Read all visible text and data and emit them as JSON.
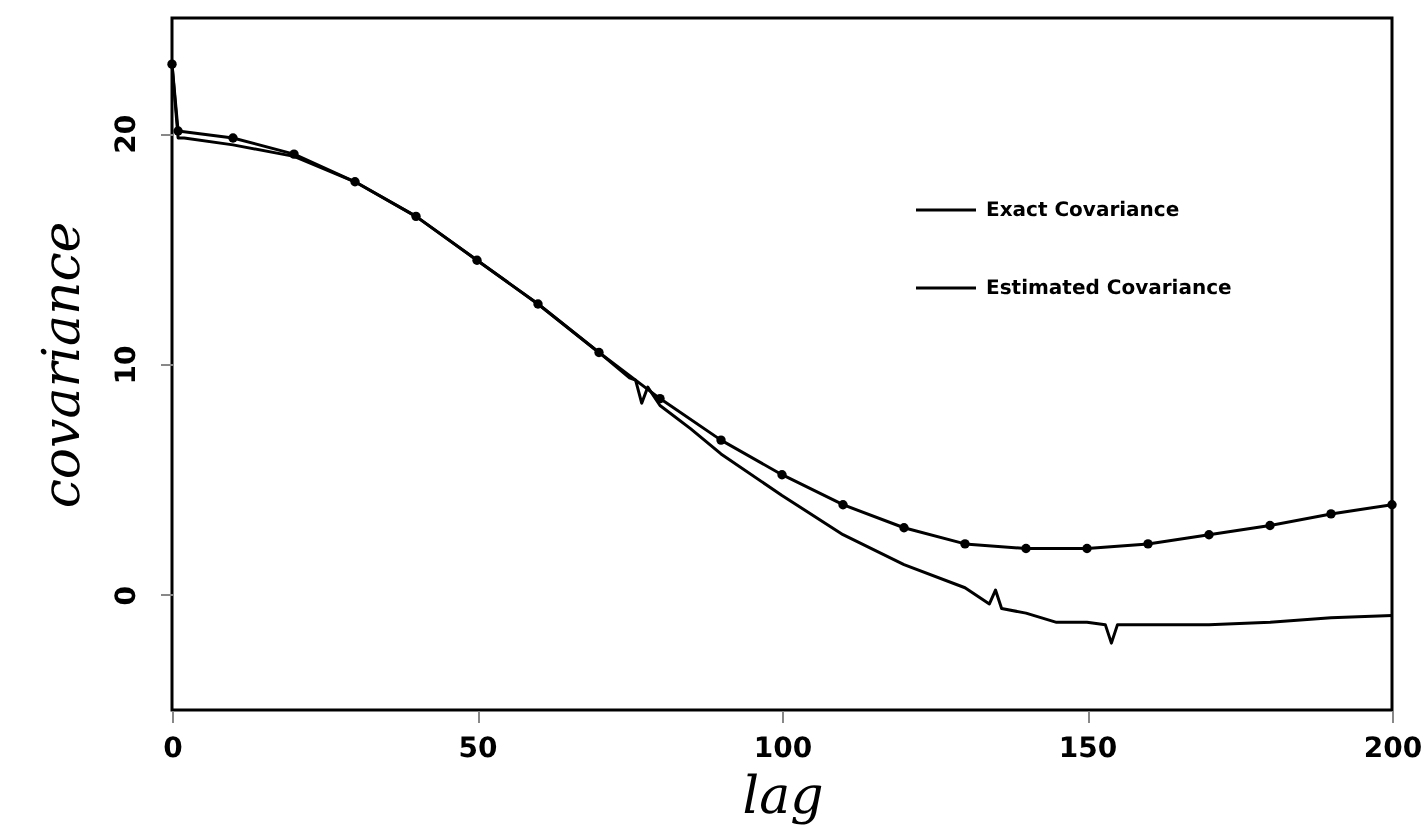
{
  "chart_data": {
    "type": "line",
    "xlabel": "lag",
    "ylabel": "covariance",
    "xlim": [
      0,
      200
    ],
    "xticks": [
      0,
      50,
      100,
      150,
      200
    ],
    "ylim": [
      -5,
      25
    ],
    "yticks": [
      0,
      10,
      20
    ],
    "grid": false,
    "legend": "top right",
    "series": [
      {
        "name": "Exact Covariance",
        "color": "#000000",
        "marker": "circle",
        "line_style": "solid",
        "x": [
          0,
          1,
          10,
          20,
          30,
          40,
          50,
          60,
          70,
          80,
          90,
          100,
          110,
          120,
          130,
          140,
          150,
          160,
          170,
          180,
          190,
          200
        ],
        "values": [
          23.0,
          20.1,
          19.8,
          19.1,
          17.9,
          16.4,
          14.5,
          12.6,
          10.5,
          8.5,
          6.7,
          5.2,
          3.9,
          2.9,
          2.2,
          2.0,
          2.0,
          2.2,
          2.6,
          3.0,
          3.5,
          3.9
        ]
      },
      {
        "name": "Estimated Covariance",
        "color": "#000000",
        "marker": "none",
        "line_style": "solid",
        "x": [
          0,
          1,
          2,
          10,
          20,
          30,
          40,
          50,
          60,
          70,
          75,
          76,
          77,
          78,
          80,
          85,
          90,
          100,
          110,
          120,
          130,
          134,
          135,
          136,
          140,
          145,
          150,
          153,
          154,
          155,
          160,
          170,
          180,
          190,
          200
        ],
        "values": [
          23.0,
          19.8,
          19.8,
          19.5,
          19.0,
          17.9,
          16.4,
          14.5,
          12.6,
          10.5,
          9.4,
          9.3,
          8.3,
          9.0,
          8.2,
          7.2,
          6.1,
          4.3,
          2.6,
          1.3,
          0.3,
          -0.4,
          0.2,
          -0.6,
          -0.8,
          -1.2,
          -1.2,
          -1.3,
          -2.1,
          -1.3,
          -1.3,
          -1.3,
          -1.2,
          -1.0,
          -0.9
        ]
      }
    ]
  }
}
